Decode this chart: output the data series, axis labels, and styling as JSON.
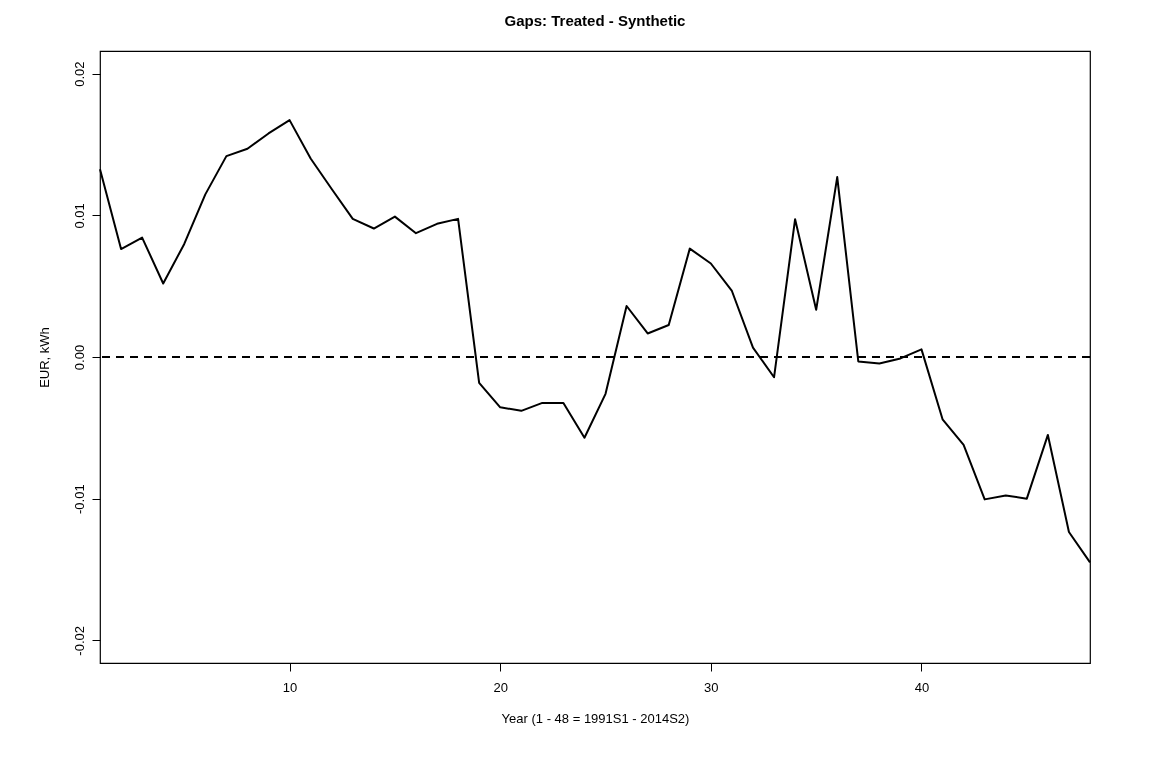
{
  "chart_data": {
    "type": "line",
    "title": "Gaps: Treated - Synthetic",
    "xlabel": "Year (1 - 48 = 1991S1 - 2014S2)",
    "ylabel": "EUR, kWh",
    "x": [
      1,
      2,
      3,
      4,
      5,
      6,
      7,
      8,
      9,
      10,
      11,
      12,
      13,
      14,
      15,
      16,
      17,
      18,
      19,
      20,
      21,
      22,
      23,
      24,
      25,
      26,
      27,
      28,
      29,
      30,
      31,
      32,
      33,
      34,
      35,
      36,
      37,
      38,
      39,
      40,
      41,
      42,
      43,
      44,
      45,
      46,
      47,
      48
    ],
    "series": [
      {
        "color": "#000000",
        "values": [
          0.01325,
          0.00762,
          0.00843,
          0.00519,
          0.00798,
          0.01148,
          0.01418,
          0.0147,
          0.01578,
          0.01672,
          0.01401,
          0.01186,
          0.00975,
          0.00907,
          0.00991,
          0.00874,
          0.0094,
          0.00975,
          -0.00182,
          -0.00355,
          -0.0038,
          -0.00324,
          -0.00324,
          -0.0057,
          -0.0026,
          0.0036,
          0.00166,
          0.00226,
          0.00765,
          0.0066,
          0.00466,
          0.00066,
          -0.00143,
          0.00973,
          0.00333,
          0.0127,
          -0.00031,
          -0.00046,
          -0.0001,
          0.00054,
          -0.0044,
          -0.0062,
          -0.01005,
          -0.00977,
          -0.01,
          -0.0055,
          -0.01235,
          -0.0145
        ]
      }
    ],
    "xlim": [
      1,
      48
    ],
    "xticks": [
      10,
      20,
      30,
      40
    ],
    "ylim": [
      -0.0216,
      0.0216
    ],
    "yticks": [
      {
        "value": -0.02,
        "label": "-0.02"
      },
      {
        "value": -0.01,
        "label": "-0.01"
      },
      {
        "value": 0,
        "label": "0.00"
      },
      {
        "value": 0.01,
        "label": "0.01"
      },
      {
        "value": 0.02,
        "label": "0.02"
      }
    ],
    "ref_lines": [
      {
        "axis": "y",
        "value": 0,
        "label": null,
        "color": "#000000",
        "line_style": "dashed"
      }
    ],
    "grid": false,
    "line_style": "solid",
    "marker": "none"
  }
}
